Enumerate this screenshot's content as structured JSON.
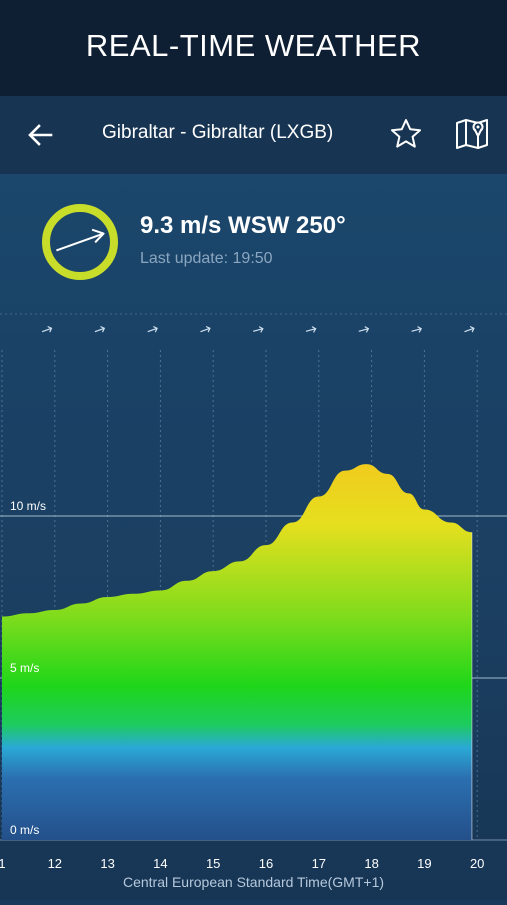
{
  "promo": {
    "title": "REAL-TIME WEATHER"
  },
  "topbar": {
    "title": "Gibraltar - Gibraltar (LXGB)",
    "icons": {
      "back": "back-arrow-icon",
      "favorite": "star-icon",
      "map": "map-pin-icon"
    }
  },
  "current": {
    "reading": "9.3 m/s WSW 250°",
    "last_update": "Last update: 19:50",
    "direction_deg": 250,
    "accent_color": "#c8dc2a"
  },
  "chart_data": {
    "type": "area",
    "x_ticks": [
      "1",
      "12",
      "13",
      "14",
      "15",
      "16",
      "17",
      "18",
      "19",
      "20"
    ],
    "y_tick_labels": [
      "10 m/s",
      "5 m/s",
      "0 m/s"
    ],
    "y_tick_values": [
      10,
      5,
      0
    ],
    "x": [
      11.0,
      11.5,
      12.0,
      12.5,
      13.0,
      13.5,
      14.0,
      14.5,
      15.0,
      15.5,
      16.0,
      16.5,
      17.0,
      17.5,
      17.9,
      18.3,
      18.7,
      19.0,
      19.5,
      19.9
    ],
    "values": [
      6.9,
      7.0,
      7.1,
      7.3,
      7.5,
      7.6,
      7.7,
      8.0,
      8.3,
      8.6,
      9.1,
      9.8,
      10.6,
      11.4,
      11.6,
      11.3,
      10.7,
      10.2,
      9.8,
      9.5
    ],
    "ylim": [
      0,
      14
    ],
    "xlim": [
      11.0,
      20.0
    ],
    "grid": true,
    "direction_arrows_deg": [
      250,
      250,
      250,
      250,
      250,
      255,
      255,
      255,
      255,
      250
    ],
    "xlabel": "Central European Standard Time(GMT+1)"
  }
}
